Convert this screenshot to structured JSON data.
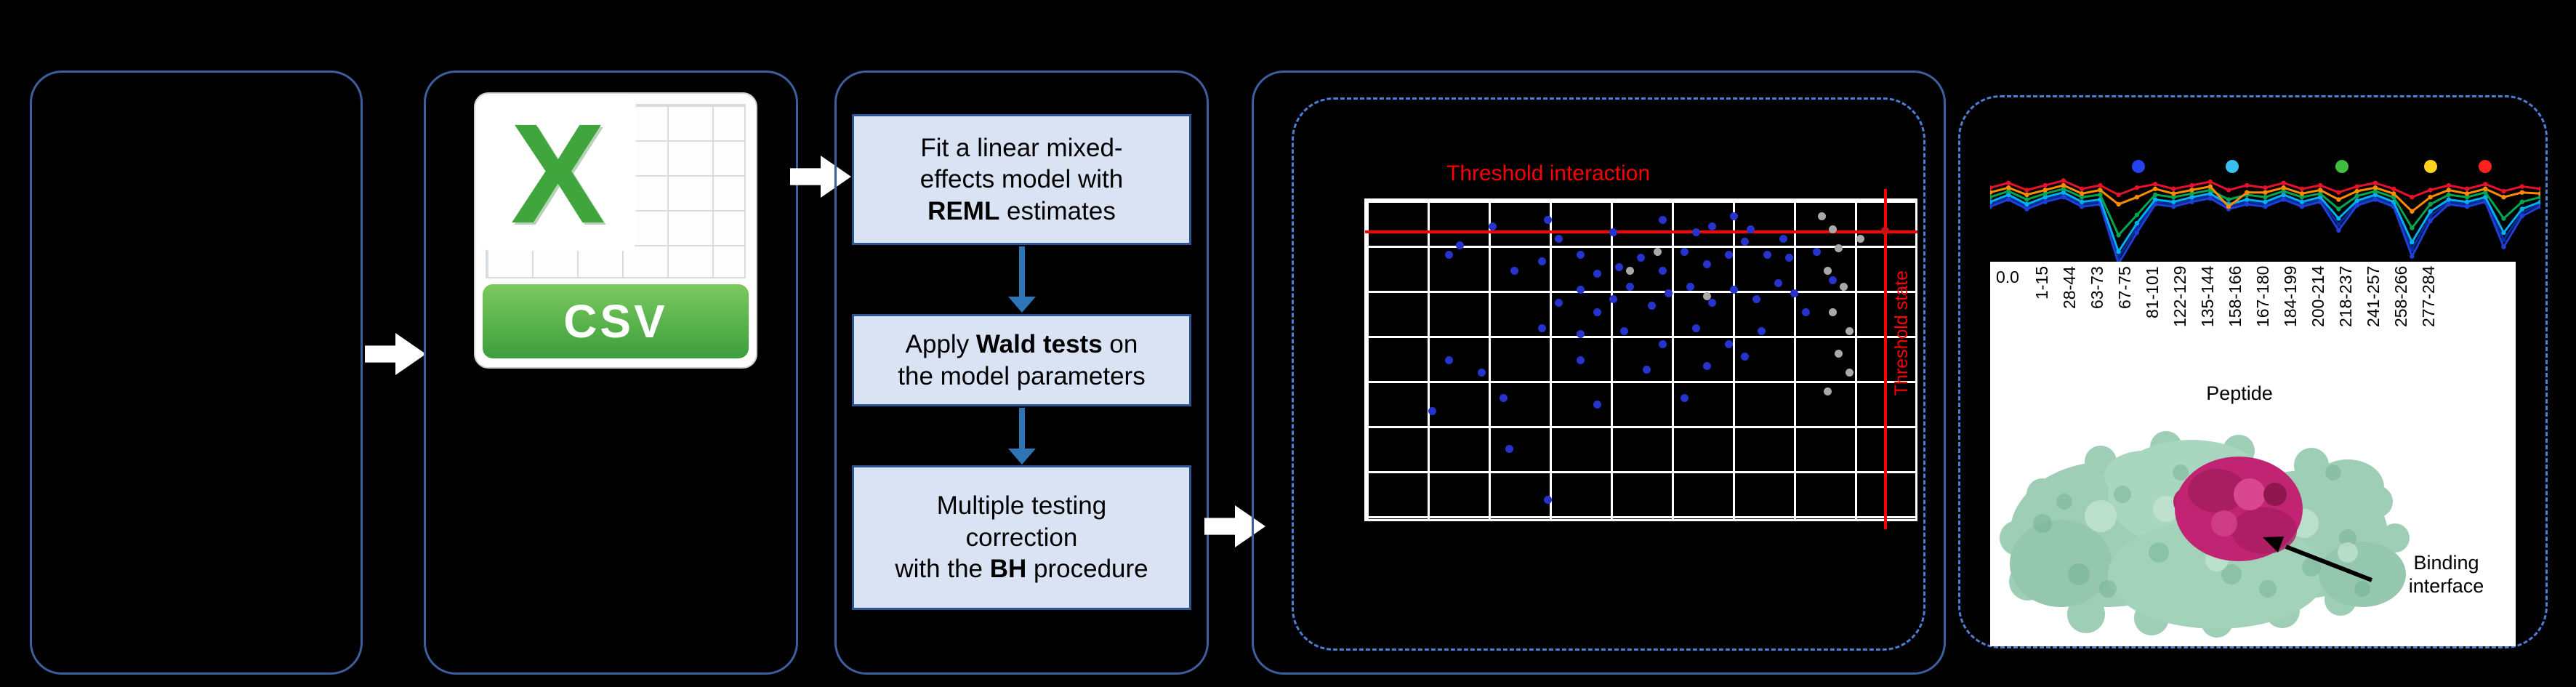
{
  "meta": {
    "figure_type": "statistical-workflow-diagram"
  },
  "colors": {
    "background": "#000000",
    "panel_border": "#3e5f9e",
    "dashed_border": "#4a7fd4",
    "step_box_fill": "#dae3f3",
    "step_box_border": "#2e5395",
    "flow_arrow": "#ffffff",
    "connector_arrow": "#2e75b6",
    "threshold_red": "#ff0000"
  },
  "csv_card": {
    "logo_letter": "X",
    "file_label": "CSV"
  },
  "steps": {
    "box1": {
      "pre": "Fit a linear mixed-\neffects model with\n",
      "bold": "REML",
      "post": " estimates"
    },
    "box2": {
      "pre": "Apply ",
      "bold": "Wald tests",
      "post": " on\nthe model parameters"
    },
    "box3": {
      "pre": "Multiple testing\ncorrection\nwith the ",
      "bold": "BH",
      "post": " procedure"
    }
  },
  "volcano": {
    "title": "Threshold interaction",
    "side_label": "Threshold state",
    "point_colors": {
      "b": "#2633cc",
      "g": "#a9a9a9",
      "r": "#cc1111"
    },
    "points": [
      [
        0.17,
        0.14,
        "b"
      ],
      [
        0.23,
        0.08,
        "b"
      ],
      [
        0.33,
        0.06,
        "b"
      ],
      [
        0.35,
        0.12,
        "b"
      ],
      [
        0.45,
        0.1,
        "b"
      ],
      [
        0.54,
        0.06,
        "b"
      ],
      [
        0.63,
        0.08,
        "b"
      ],
      [
        0.67,
        0.05,
        "b"
      ],
      [
        0.27,
        0.22,
        "b"
      ],
      [
        0.32,
        0.19,
        "b"
      ],
      [
        0.39,
        0.17,
        "b"
      ],
      [
        0.42,
        0.23,
        "b"
      ],
      [
        0.46,
        0.21,
        "b"
      ],
      [
        0.5,
        0.18,
        "b"
      ],
      [
        0.54,
        0.22,
        "b"
      ],
      [
        0.58,
        0.16,
        "b"
      ],
      [
        0.62,
        0.2,
        "b"
      ],
      [
        0.66,
        0.17,
        "b"
      ],
      [
        0.69,
        0.13,
        "b"
      ],
      [
        0.73,
        0.17,
        "b"
      ],
      [
        0.77,
        0.18,
        "b"
      ],
      [
        0.39,
        0.28,
        "b"
      ],
      [
        0.35,
        0.32,
        "b"
      ],
      [
        0.42,
        0.35,
        "b"
      ],
      [
        0.45,
        0.31,
        "b"
      ],
      [
        0.48,
        0.27,
        "b"
      ],
      [
        0.52,
        0.33,
        "b"
      ],
      [
        0.55,
        0.29,
        "b"
      ],
      [
        0.59,
        0.27,
        "b"
      ],
      [
        0.63,
        0.32,
        "b"
      ],
      [
        0.67,
        0.28,
        "b"
      ],
      [
        0.71,
        0.31,
        "b"
      ],
      [
        0.75,
        0.26,
        "b"
      ],
      [
        0.78,
        0.29,
        "b"
      ],
      [
        0.32,
        0.4,
        "b"
      ],
      [
        0.39,
        0.42,
        "b"
      ],
      [
        0.47,
        0.41,
        "b"
      ],
      [
        0.54,
        0.45,
        "b"
      ],
      [
        0.6,
        0.4,
        "b"
      ],
      [
        0.66,
        0.45,
        "b"
      ],
      [
        0.72,
        0.41,
        "b"
      ],
      [
        0.15,
        0.5,
        "b"
      ],
      [
        0.21,
        0.54,
        "b"
      ],
      [
        0.39,
        0.5,
        "b"
      ],
      [
        0.51,
        0.53,
        "b"
      ],
      [
        0.62,
        0.52,
        "b"
      ],
      [
        0.69,
        0.49,
        "b"
      ],
      [
        0.12,
        0.66,
        "b"
      ],
      [
        0.25,
        0.62,
        "b"
      ],
      [
        0.42,
        0.64,
        "b"
      ],
      [
        0.58,
        0.62,
        "b"
      ],
      [
        0.26,
        0.78,
        "b"
      ],
      [
        0.33,
        0.94,
        "b"
      ],
      [
        0.15,
        0.17,
        "b"
      ],
      [
        0.6,
        0.1,
        "b"
      ],
      [
        0.7,
        0.09,
        "b"
      ],
      [
        0.76,
        0.12,
        "b"
      ],
      [
        0.82,
        0.16,
        "b"
      ],
      [
        0.85,
        0.25,
        "b"
      ],
      [
        0.8,
        0.35,
        "b"
      ],
      [
        0.83,
        0.05,
        "g"
      ],
      [
        0.85,
        0.09,
        "g"
      ],
      [
        0.86,
        0.15,
        "g"
      ],
      [
        0.84,
        0.22,
        "g"
      ],
      [
        0.87,
        0.27,
        "g"
      ],
      [
        0.85,
        0.35,
        "g"
      ],
      [
        0.88,
        0.41,
        "g"
      ],
      [
        0.86,
        0.48,
        "g"
      ],
      [
        0.88,
        0.54,
        "g"
      ],
      [
        0.84,
        0.6,
        "g"
      ],
      [
        0.53,
        0.16,
        "g"
      ],
      [
        0.48,
        0.22,
        "g"
      ],
      [
        0.62,
        0.3,
        "g"
      ],
      [
        0.9,
        0.12,
        "g"
      ],
      [
        0.945,
        0.095,
        "r"
      ]
    ]
  },
  "uptake": {
    "legend_dots": [
      {
        "x": 0.27,
        "color": "#2442f0"
      },
      {
        "x": 0.44,
        "color": "#39c0f0"
      },
      {
        "x": 0.64,
        "color": "#3fbf3f"
      },
      {
        "x": 0.8,
        "color": "#ffd21f"
      },
      {
        "x": 0.9,
        "color": "#ff2020"
      }
    ],
    "series": [
      {
        "name": "navy",
        "color": "#002d9c",
        "values": [
          0.46,
          0.4,
          0.48,
          0.42,
          0.38,
          0.46,
          0.44,
          0.91,
          0.66,
          0.44,
          0.46,
          0.42,
          0.39,
          0.48,
          0.44,
          0.46,
          0.4,
          0.46,
          0.42,
          0.63,
          0.45,
          0.4,
          0.46,
          0.84,
          0.56,
          0.44,
          0.46,
          0.42,
          0.76,
          0.53,
          0.46
        ]
      },
      {
        "name": "blue",
        "color": "#1f3fd8",
        "values": [
          0.48,
          0.42,
          0.5,
          0.44,
          0.4,
          0.48,
          0.46,
          0.96,
          0.7,
          0.46,
          0.48,
          0.44,
          0.41,
          0.5,
          0.46,
          0.48,
          0.42,
          0.48,
          0.44,
          0.68,
          0.47,
          0.42,
          0.48,
          0.9,
          0.6,
          0.46,
          0.48,
          0.44,
          0.82,
          0.56,
          0.48
        ]
      },
      {
        "name": "cyan",
        "color": "#00b0f0",
        "values": [
          0.44,
          0.38,
          0.46,
          0.4,
          0.36,
          0.44,
          0.42,
          0.86,
          0.62,
          0.42,
          0.44,
          0.4,
          0.37,
          0.46,
          0.42,
          0.44,
          0.38,
          0.44,
          0.4,
          0.58,
          0.43,
          0.38,
          0.44,
          0.78,
          0.52,
          0.42,
          0.44,
          0.4,
          0.7,
          0.5,
          0.44
        ]
      },
      {
        "name": "green",
        "color": "#00a651",
        "values": [
          0.4,
          0.35,
          0.42,
          0.37,
          0.33,
          0.4,
          0.38,
          0.72,
          0.55,
          0.38,
          0.4,
          0.37,
          0.34,
          0.42,
          0.38,
          0.4,
          0.35,
          0.4,
          0.37,
          0.5,
          0.39,
          0.35,
          0.4,
          0.66,
          0.46,
          0.38,
          0.4,
          0.36,
          0.58,
          0.44,
          0.4
        ]
      },
      {
        "name": "orange",
        "color": "#ff8c00",
        "values": [
          0.36,
          0.32,
          0.38,
          0.34,
          0.3,
          0.37,
          0.34,
          0.46,
          0.4,
          0.33,
          0.37,
          0.34,
          0.31,
          0.48,
          0.36,
          0.36,
          0.32,
          0.37,
          0.34,
          0.42,
          0.35,
          0.32,
          0.37,
          0.52,
          0.4,
          0.34,
          0.37,
          0.33,
          0.4,
          0.36,
          0.37
        ]
      },
      {
        "name": "red",
        "color": "#e8112d",
        "values": [
          0.32,
          0.28,
          0.34,
          0.3,
          0.26,
          0.33,
          0.3,
          0.38,
          0.32,
          0.29,
          0.33,
          0.3,
          0.27,
          0.34,
          0.3,
          0.32,
          0.28,
          0.33,
          0.3,
          0.36,
          0.31,
          0.28,
          0.33,
          0.4,
          0.34,
          0.3,
          0.33,
          0.29,
          0.35,
          0.31,
          0.33
        ]
      }
    ]
  },
  "peptide_plot": {
    "y_tick": "0.0",
    "x_labels": [
      "1-15",
      "28-44",
      "63-73",
      "67-75",
      "81-101",
      "122-129",
      "135-144",
      "158-166",
      "167-180",
      "184-199",
      "200-214",
      "218-237",
      "241-257",
      "258-266",
      "277-284"
    ],
    "x_axis_title": "Peptide"
  },
  "structure": {
    "annotation": "Binding interface"
  }
}
